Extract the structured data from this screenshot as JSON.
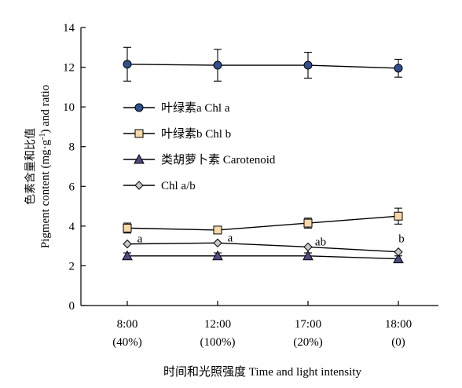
{
  "chart_data": {
    "type": "line",
    "xlabel": "时间和光照强度 Time and light intensity",
    "ylabel_cn": "色素含量和比值",
    "ylabel_en_main": "Pigment content (mg·g",
    "ylabel_en_sup": "-1",
    "ylabel_en_end": ") and ratio",
    "categories": [
      {
        "time": "8:00",
        "light": "(40%)"
      },
      {
        "time": "12:00",
        "light": "(100%)"
      },
      {
        "time": "17:00",
        "light": "(20%)"
      },
      {
        "time": "18:00",
        "light": "(0)"
      }
    ],
    "ylim": [
      0,
      14
    ],
    "yticks": [
      "0",
      "2",
      "4",
      "6",
      "8",
      "10",
      "12",
      "14"
    ],
    "legend_position": "center-left",
    "series": [
      {
        "name": "叶绿素a Chl a",
        "marker": "circle",
        "color": "#2f4f8f",
        "values": [
          12.15,
          12.1,
          12.1,
          11.95
        ],
        "errors": [
          0.85,
          0.8,
          0.65,
          0.45
        ]
      },
      {
        "name": "叶绿素b Chl b",
        "marker": "square",
        "color": "#f7d9a8",
        "values": [
          3.9,
          3.8,
          4.15,
          4.5
        ],
        "errors": [
          0.25,
          0.15,
          0.25,
          0.4
        ]
      },
      {
        "name": "类胡萝卜素 Carotenoid",
        "marker": "triangle",
        "color": "#4b4b86",
        "values": [
          2.5,
          2.5,
          2.5,
          2.35
        ],
        "errors": [
          0.15,
          0.15,
          0.15,
          0.15
        ]
      },
      {
        "name": "Chl a/b",
        "marker": "diamond",
        "color": "#c8c8c8",
        "values": [
          3.1,
          3.15,
          2.95,
          2.7
        ],
        "errors": [
          0,
          0,
          0,
          0
        ]
      }
    ],
    "annotations": [
      "a",
      "a",
      "ab",
      "b"
    ]
  }
}
